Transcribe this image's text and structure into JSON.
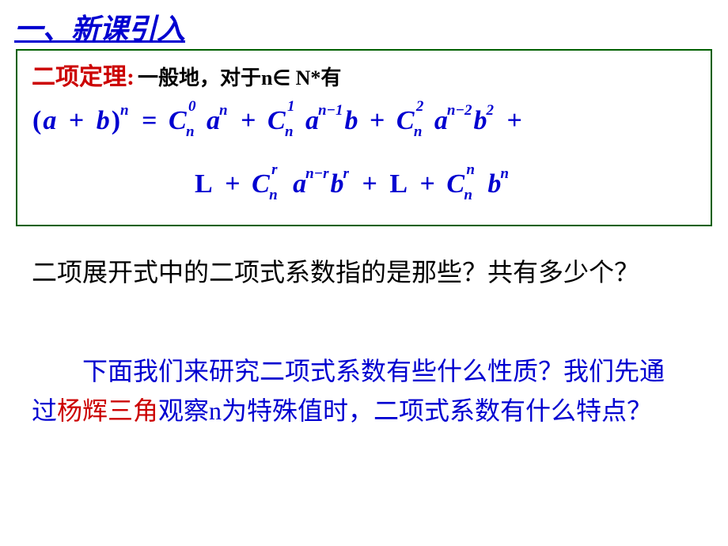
{
  "colors": {
    "heading_blue": "#0000d0",
    "theorem_red": "#cc0000",
    "body_black": "#000000",
    "box_border": "#006000",
    "background": "#ffffff"
  },
  "typography": {
    "heading_size": 36,
    "theorem_title_size": 30,
    "intro_size": 26,
    "formula_size": 34,
    "body_size": 32,
    "supsub_size": 19
  },
  "header": {
    "title": "一、新课引入"
  },
  "theorem": {
    "label": "二项定理:",
    "intro_prefix": "一般地，对于n",
    "element_of": "∈",
    "set": "N*",
    "intro_suffix": "有",
    "lhs": {
      "open": "(",
      "a": "a",
      "plus": "+",
      "b": "b",
      "close": ")",
      "exp": "n"
    },
    "eq": "=",
    "terms": [
      {
        "C": "C",
        "sup": "0",
        "sub": "n",
        "a": "a",
        "aexp": "n",
        "b": "",
        "bexp": ""
      },
      {
        "C": "C",
        "sup": "1",
        "sub": "n",
        "a": "a",
        "aexp": "n−1",
        "b": "b",
        "bexp": ""
      },
      {
        "C": "C",
        "sup": "2",
        "sub": "n",
        "a": "a",
        "aexp": "n−2",
        "b": "b",
        "bexp": "2"
      }
    ],
    "plus": "+",
    "ellipsis": "L",
    "term_r": {
      "C": "C",
      "sup": "r",
      "sub": "n",
      "a": "a",
      "aexp": "n−r",
      "b": "b",
      "bexp": "r"
    },
    "term_last": {
      "C": "C",
      "sup": "n",
      "sub": "n",
      "b": "b",
      "bexp": "n"
    }
  },
  "question": {
    "text": "二项展开式中的二项式系数指的是那些？共有多少个？"
  },
  "followup": {
    "part1": "下面我们来研究二项式系数有些什么性质？我们先通过",
    "highlight": "杨辉三角",
    "part2": "观察n为特殊值时，二项式系数有什么特点？"
  }
}
